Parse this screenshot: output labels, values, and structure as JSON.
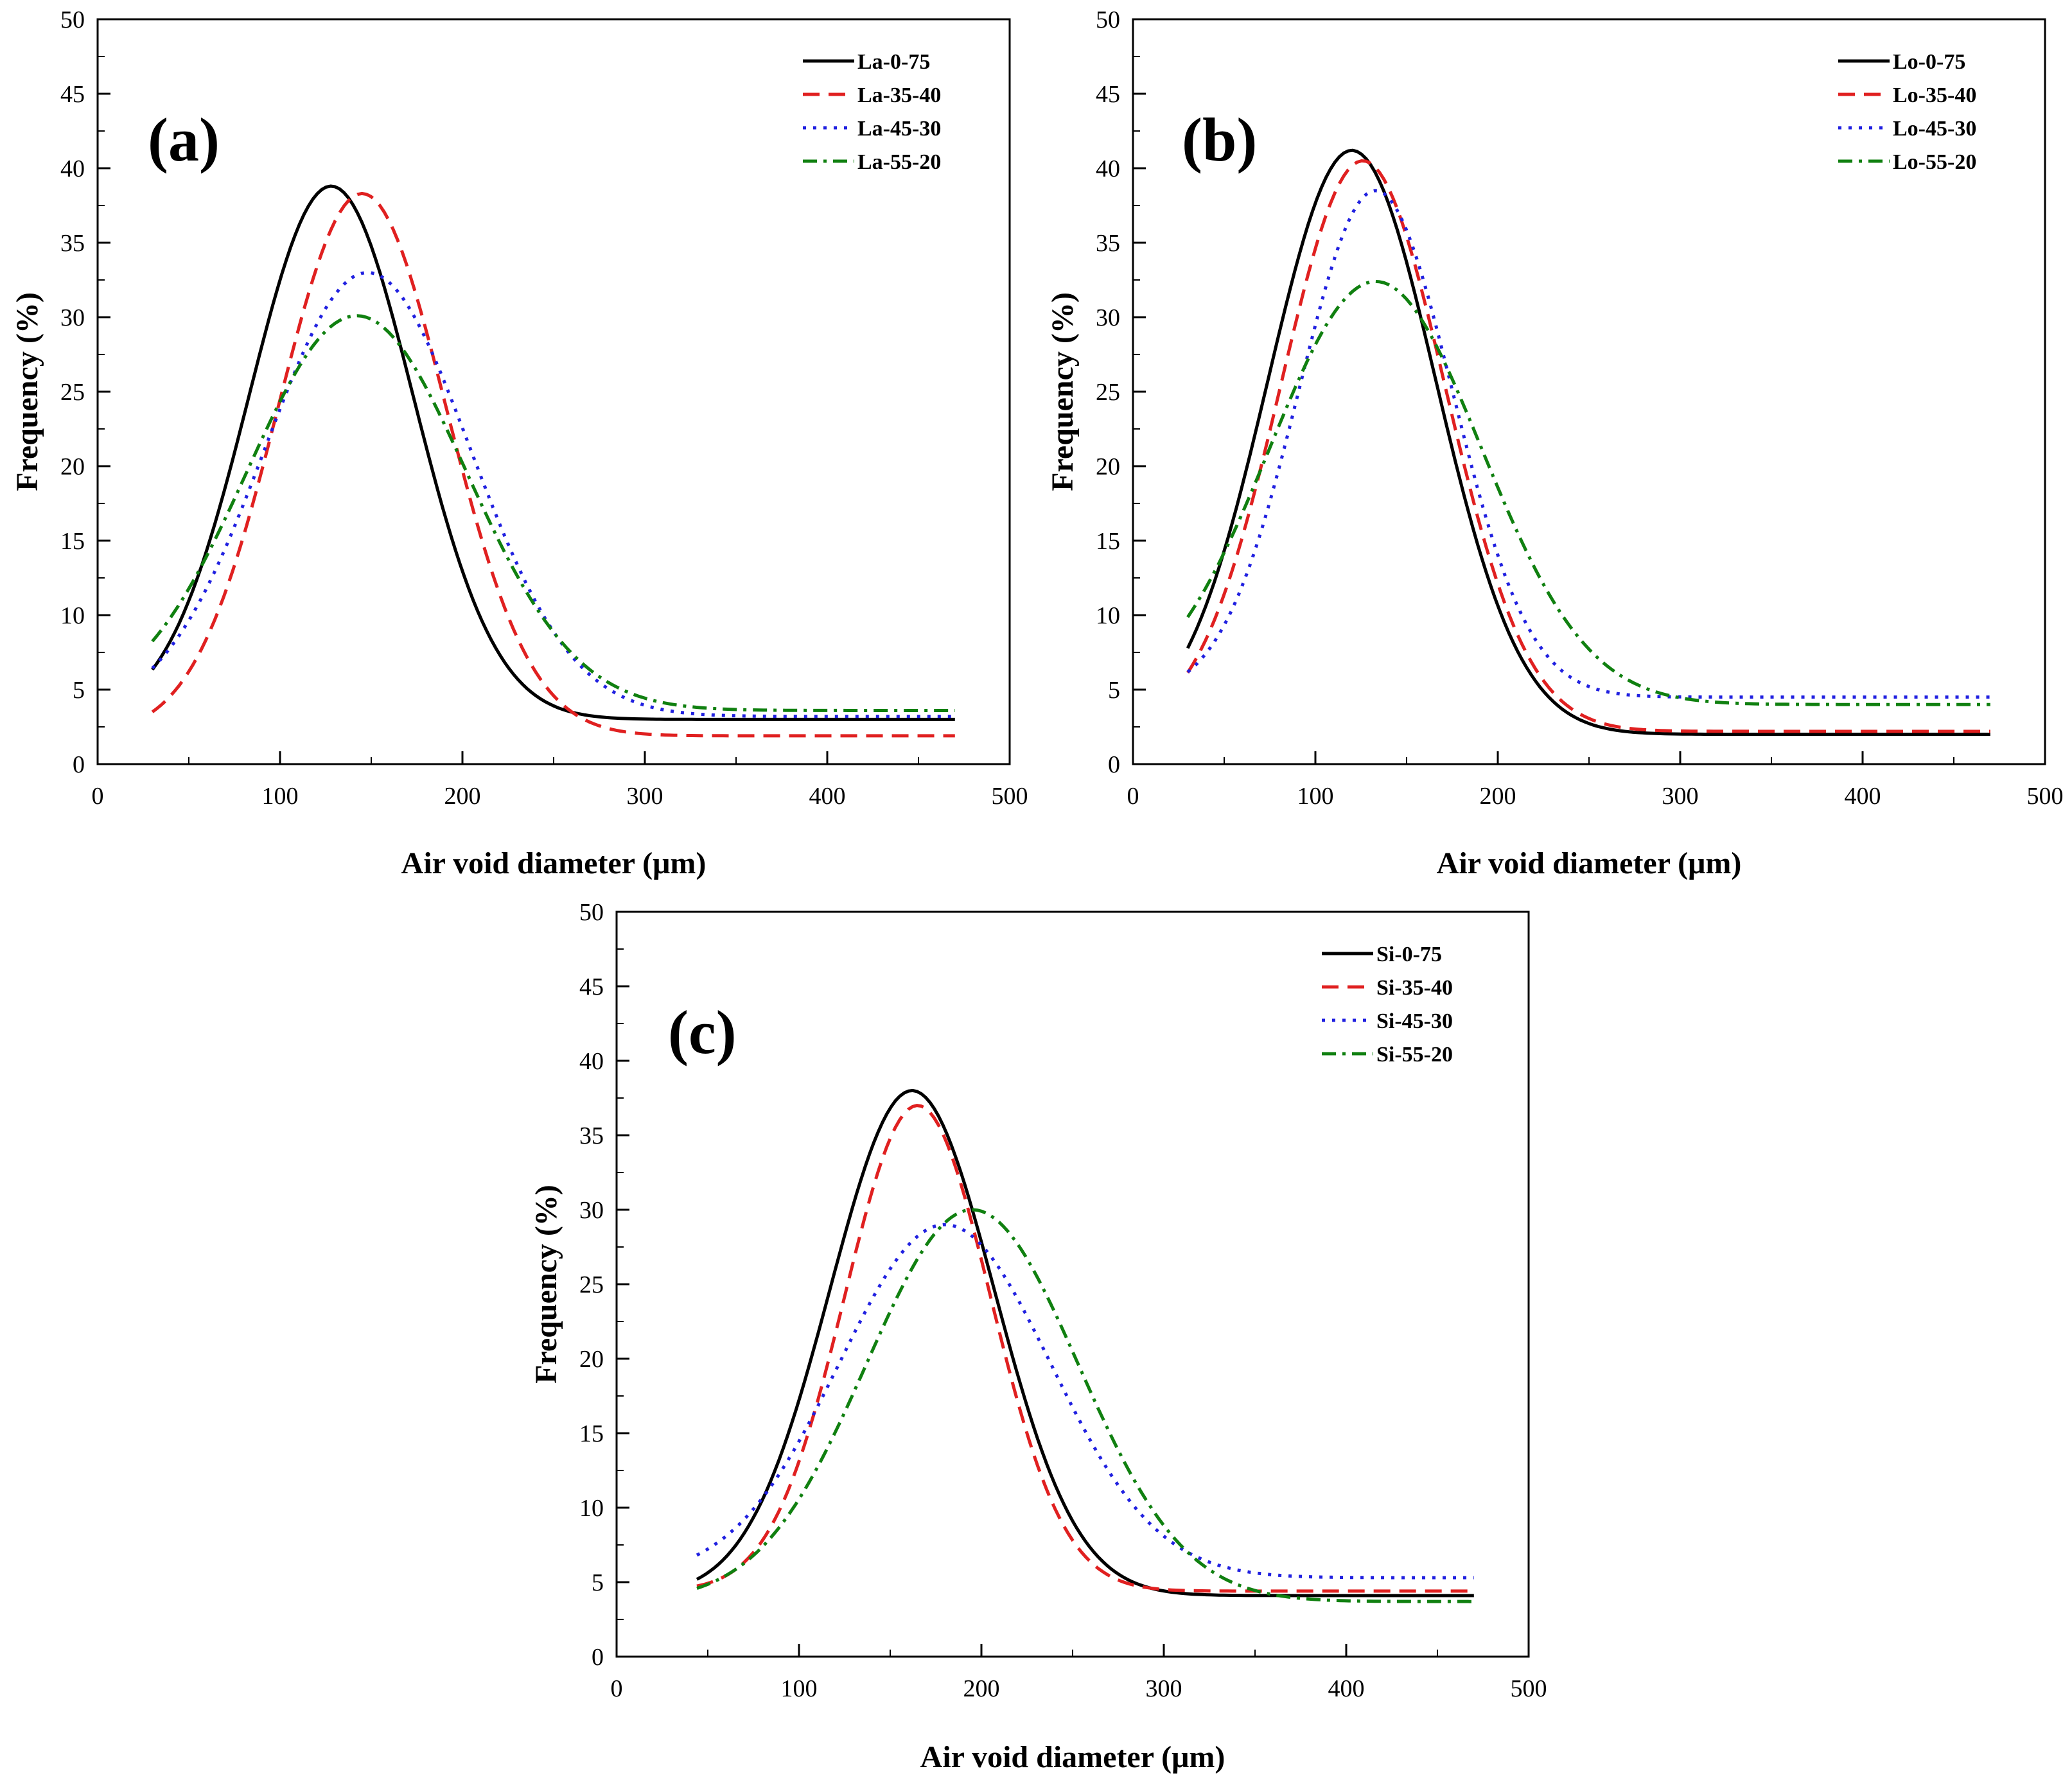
{
  "chart_data": [
    {
      "type": "line",
      "panel_label": "(a)",
      "xlabel": "Air void diameter (μm)",
      "ylabel": "Frequency (%)",
      "xlim": [
        0,
        500
      ],
      "ylim": [
        0,
        50
      ],
      "xticks": [
        "0",
        "100",
        "200",
        "300",
        "400",
        "500"
      ],
      "yticks": [
        "0",
        "5",
        "10",
        "15",
        "20",
        "25",
        "30",
        "35",
        "40",
        "45",
        "50"
      ],
      "grid": false,
      "legend_position": "top-right",
      "series": [
        {
          "name": "La-0-75",
          "color": "#000000",
          "dash": "solid",
          "baseline": 3.0,
          "peak": 38.8,
          "center": 128,
          "sigma": 45,
          "x": [
            30,
            50,
            75,
            100,
            128,
            150,
            175,
            200,
            225,
            250,
            275,
            300,
            350,
            400,
            470
          ]
        },
        {
          "name": "La-35-40",
          "color": "#e02020",
          "dash": "dashed",
          "baseline": 1.9,
          "peak": 38.3,
          "center": 145,
          "sigma": 46,
          "x": [
            30,
            50,
            75,
            100,
            125,
            145,
            175,
            200,
            225,
            250,
            275,
            300,
            350,
            400,
            470
          ]
        },
        {
          "name": "La-45-30",
          "color": "#2020e0",
          "dash": "dotted",
          "baseline": 3.2,
          "peak": 33.0,
          "center": 148,
          "sigma": 56,
          "x": [
            30,
            50,
            75,
            100,
            125,
            148,
            175,
            200,
            225,
            250,
            275,
            300,
            350,
            400,
            470
          ]
        },
        {
          "name": "La-55-20",
          "color": "#108010",
          "dash": "dashdot",
          "baseline": 3.6,
          "peak": 30.1,
          "center": 142,
          "sigma": 60,
          "x": [
            30,
            50,
            75,
            100,
            125,
            142,
            175,
            200,
            225,
            250,
            275,
            300,
            350,
            400,
            470
          ]
        }
      ]
    },
    {
      "type": "line",
      "panel_label": "(b)",
      "xlabel": "Air void diameter (μm)",
      "ylabel": "Frequency (%)",
      "xlim": [
        0,
        500
      ],
      "ylim": [
        0,
        50
      ],
      "xticks": [
        "0",
        "100",
        "200",
        "300",
        "400",
        "500"
      ],
      "yticks": [
        "0",
        "5",
        "10",
        "15",
        "20",
        "25",
        "30",
        "35",
        "40",
        "45",
        "50"
      ],
      "grid": false,
      "legend_position": "top-right",
      "series": [
        {
          "name": "Lo-0-75",
          "color": "#000000",
          "dash": "solid",
          "baseline": 2.0,
          "peak": 41.2,
          "center": 120,
          "sigma": 46,
          "x": [
            30,
            50,
            75,
            100,
            120,
            150,
            175,
            200,
            225,
            250,
            275,
            300,
            350,
            400,
            470
          ]
        },
        {
          "name": "Lo-35-40",
          "color": "#e02020",
          "dash": "dashed",
          "baseline": 2.2,
          "peak": 40.5,
          "center": 126,
          "sigma": 45,
          "x": [
            30,
            50,
            75,
            100,
            126,
            150,
            175,
            200,
            225,
            250,
            275,
            300,
            350,
            400,
            470
          ]
        },
        {
          "name": "Lo-45-30",
          "color": "#2020e0",
          "dash": "dotted",
          "baseline": 4.5,
          "peak": 38.5,
          "center": 133,
          "sigma": 42,
          "x": [
            30,
            50,
            75,
            100,
            133,
            150,
            175,
            200,
            225,
            250,
            275,
            300,
            350,
            400,
            470
          ]
        },
        {
          "name": "Lo-55-20",
          "color": "#108010",
          "dash": "dashdot",
          "baseline": 4.0,
          "peak": 32.4,
          "center": 133,
          "sigma": 58,
          "x": [
            30,
            50,
            75,
            100,
            133,
            150,
            175,
            200,
            225,
            250,
            275,
            300,
            350,
            400,
            470
          ]
        }
      ]
    },
    {
      "type": "line",
      "panel_label": "(c)",
      "xlabel": "Air void diameter (μm)",
      "ylabel": "Frequency (%)",
      "xlim": [
        0,
        500
      ],
      "ylim": [
        0,
        50
      ],
      "xticks": [
        "0",
        "100",
        "200",
        "300",
        "400",
        "500"
      ],
      "yticks": [
        "0",
        "5",
        "10",
        "15",
        "20",
        "25",
        "30",
        "35",
        "40",
        "45",
        "50"
      ],
      "grid": false,
      "legend_position": "top-right",
      "series": [
        {
          "name": "Si-0-75",
          "color": "#000000",
          "dash": "solid",
          "baseline": 4.1,
          "peak": 38.0,
          "center": 162,
          "sigma": 45,
          "x": [
            44,
            60,
            80,
            100,
            125,
            162,
            180,
            200,
            225,
            250,
            275,
            300,
            350,
            400,
            470
          ]
        },
        {
          "name": "Si-35-40",
          "color": "#e02020",
          "dash": "dashed",
          "baseline": 4.4,
          "peak": 37.0,
          "center": 165,
          "sigma": 40,
          "x": [
            44,
            60,
            80,
            100,
            125,
            165,
            180,
            200,
            225,
            250,
            275,
            300,
            350,
            400,
            470
          ]
        },
        {
          "name": "Si-45-30",
          "color": "#2020e0",
          "dash": "dotted",
          "baseline": 5.3,
          "peak": 29.0,
          "center": 180,
          "sigma": 58,
          "x": [
            44,
            60,
            80,
            100,
            125,
            180,
            200,
            225,
            250,
            275,
            300,
            325,
            350,
            400,
            470
          ]
        },
        {
          "name": "Si-55-20",
          "color": "#108010",
          "dash": "dashdot",
          "baseline": 3.7,
          "peak": 30.0,
          "center": 195,
          "sigma": 58,
          "x": [
            44,
            60,
            80,
            100,
            125,
            150,
            195,
            225,
            250,
            275,
            300,
            325,
            350,
            400,
            470
          ]
        }
      ]
    }
  ]
}
